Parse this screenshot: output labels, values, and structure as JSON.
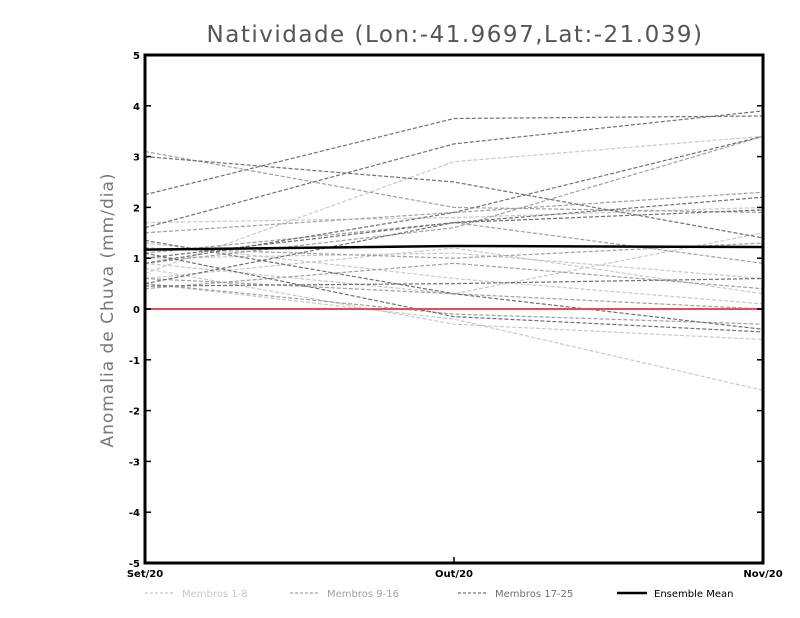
{
  "chart_data": {
    "type": "line",
    "title": "Natividade (Lon:-41.9697,Lat:-21.039)",
    "ylabel": "Anomalia de Chuva (mm/dia)",
    "xlabel": "",
    "categories": [
      "Set/20",
      "Out/20",
      "Nov/20"
    ],
    "ylim": [
      -5,
      5
    ],
    "yticks": [
      "5",
      "4",
      "3",
      "2",
      "1",
      "0",
      "-1",
      "-2",
      "-3",
      "-4",
      "-5"
    ],
    "grid": false,
    "legend_position": "bottom",
    "zero_line_color": "#e05050",
    "legend": [
      {
        "label": "Membros 1-8",
        "color": "#c8c8c8",
        "style": "dashed"
      },
      {
        "label": "Membros 9-16",
        "color": "#a0a0a0",
        "style": "dashed"
      },
      {
        "label": "Membros 17-25",
        "color": "#707070",
        "style": "dashed"
      },
      {
        "label": "Ensemble Mean",
        "color": "#000000",
        "style": "solid"
      }
    ],
    "groups": [
      {
        "color": "#c8c8c8",
        "series": [
          [
            0.7,
            2.9,
            3.4
          ],
          [
            1.7,
            1.8,
            2.0
          ],
          [
            0.5,
            -0.2,
            -1.6
          ],
          [
            1.0,
            1.1,
            0.6
          ],
          [
            0.8,
            -0.3,
            -0.6
          ],
          [
            1.3,
            0.6,
            0.1
          ],
          [
            0.6,
            1.2,
            0.3
          ],
          [
            0.9,
            0.3,
            1.5
          ]
        ]
      },
      {
        "color": "#a0a0a0",
        "series": [
          [
            3.1,
            2.0,
            1.9
          ],
          [
            1.5,
            1.9,
            2.3
          ],
          [
            0.4,
            0.9,
            0.4
          ],
          [
            1.2,
            1.0,
            1.3
          ],
          [
            0.5,
            -0.1,
            -0.3
          ],
          [
            0.9,
            1.6,
            3.4
          ],
          [
            0.6,
            0.3,
            0.0
          ],
          [
            1.1,
            1.7,
            0.9
          ]
        ]
      },
      {
        "color": "#707070",
        "series": [
          [
            2.25,
            3.75,
            3.8
          ],
          [
            3.0,
            2.5,
            1.4
          ],
          [
            1.6,
            3.25,
            3.9
          ],
          [
            1.0,
            1.7,
            2.2
          ],
          [
            1.35,
            0.3,
            -0.4
          ],
          [
            0.45,
            0.5,
            0.6
          ],
          [
            0.9,
            1.9,
            3.4
          ],
          [
            1.1,
            -0.15,
            -0.45
          ],
          [
            0.5,
            1.7,
            1.95
          ]
        ]
      }
    ],
    "ensemble_mean": [
      1.17,
      1.24,
      1.22
    ]
  }
}
